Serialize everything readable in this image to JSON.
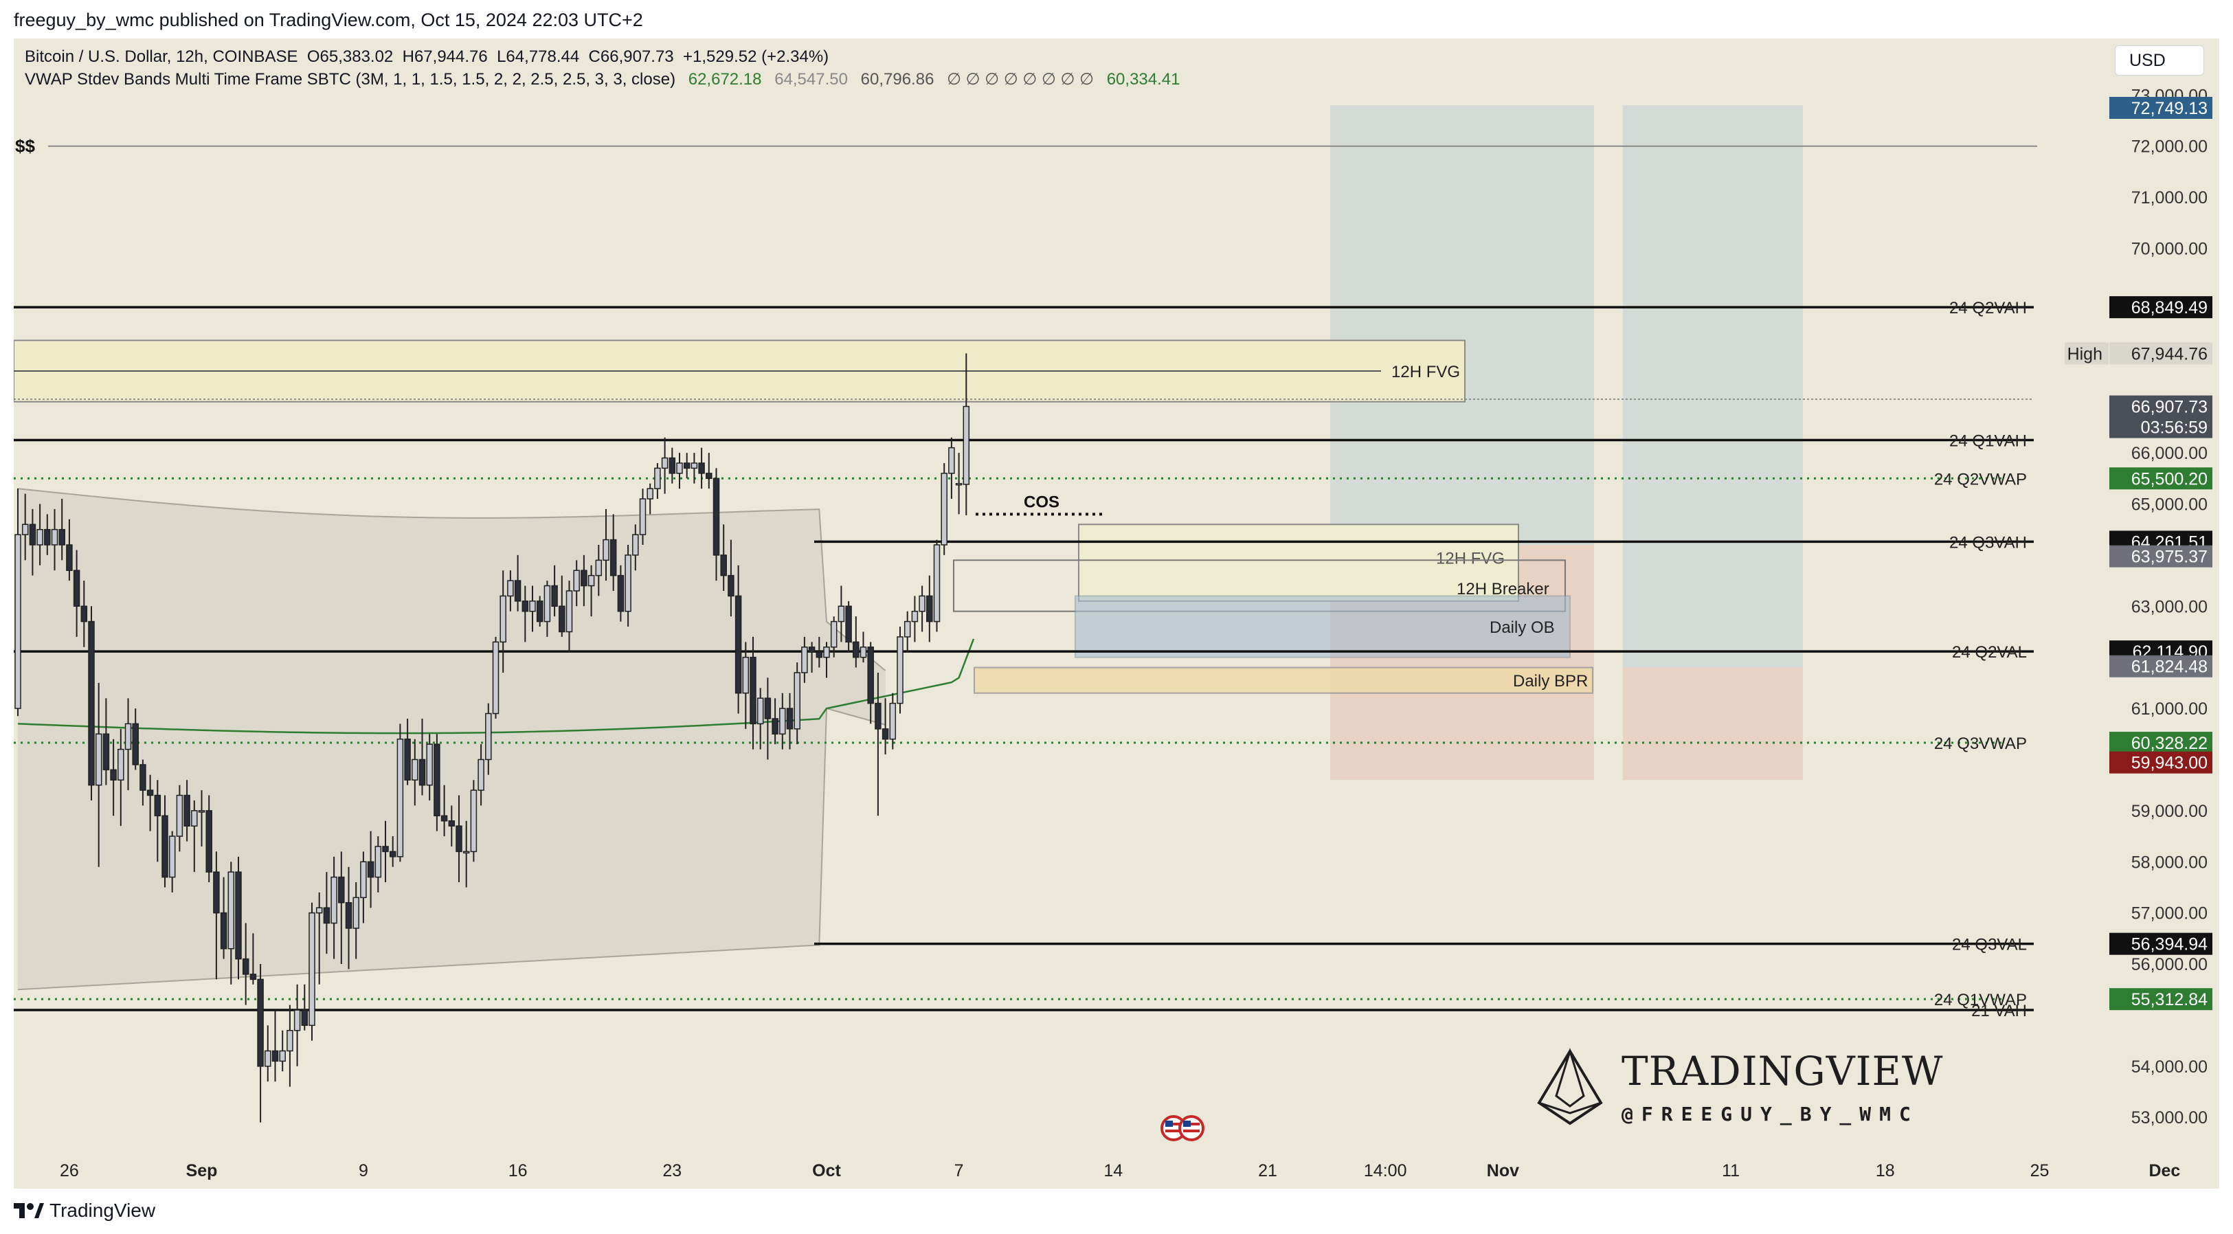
{
  "header": {
    "publish_line": "freeguy_by_wmc published on TradingView.com, Oct 15, 2024 22:03 UTC+2"
  },
  "legend": {
    "symbol": "Bitcoin / U.S. Dollar, 12h, COINBASE",
    "open": "O65,383.02",
    "high": "H67,944.76",
    "low": "L64,778.44",
    "close": "C66,907.73",
    "change": "+1,529.52 (+2.34%)",
    "indicator": "VWAP Stdev Bands Multi Time Frame SBTC (3M, 1, 1, 1.5, 1.5, 2, 2, 2.5, 2.5, 3, 3, close)",
    "ind_v1": "62,672.18",
    "ind_v2": "64,547.50",
    "ind_v3": "60,796.86",
    "ind_na": "∅ ∅ ∅ ∅ ∅ ∅ ∅ ∅",
    "ind_v4": "60,334.41"
  },
  "currency": "USD",
  "footer": {
    "brand": "TradingView"
  },
  "watermark": {
    "title": "TRADINGVIEW",
    "handle": "@FREEGUY_BY_WMC"
  },
  "colors": {
    "background": "#ebe7d9",
    "up_candle": "#c8cbd1",
    "down_candle": "#2a2e39",
    "vwap_green": "#2e7d32",
    "label_green": "#2e7d32",
    "label_red": "#8b1a1a",
    "label_blue": "#2c5f8a"
  },
  "chart_data": {
    "type": "candlestick",
    "interval": "12h",
    "ylim": [
      52600,
      73300
    ],
    "y_ticks": [
      53000,
      54000,
      56000,
      57000,
      58000,
      59000,
      61000,
      63000,
      65000,
      66000,
      70000,
      71000,
      72000,
      73000
    ],
    "y_tick_labels": [
      "53,000.00",
      "54,000.00",
      "56,000.00",
      "57,000.00",
      "58,000.00",
      "59,000.00",
      "61,000.00",
      "63,000.00",
      "65,000.00",
      "66,000.00",
      "70,000.00",
      "71,000.00",
      "72,000.00",
      "73,000.00"
    ],
    "x_ticks": [
      {
        "label": "26",
        "i": 7
      },
      {
        "label": "Sep",
        "i": 25
      },
      {
        "label": "9",
        "i": 47
      },
      {
        "label": "16",
        "i": 68
      },
      {
        "label": "23",
        "i": 89
      },
      {
        "label": "Oct",
        "i": 110
      },
      {
        "label": "7",
        "i": 128
      },
      {
        "label": "14",
        "i": 149
      },
      {
        "label": "21",
        "i": 170
      },
      {
        "label": "14:00",
        "i": 186
      },
      {
        "label": "Nov",
        "i": 202
      },
      {
        "label": "11",
        "i": 233
      },
      {
        "label": "18",
        "i": 254
      },
      {
        "label": "25",
        "i": 275
      },
      {
        "label": "Dec",
        "i": 292
      }
    ],
    "candles": [
      [
        61000,
        65300,
        60850,
        64400
      ],
      [
        64400,
        65200,
        63900,
        64600
      ],
      [
        64600,
        64900,
        63600,
        64200
      ],
      [
        64200,
        65000,
        63800,
        64500
      ],
      [
        64500,
        64800,
        64000,
        64200
      ],
      [
        64200,
        64900,
        63700,
        64500
      ],
      [
        64500,
        65100,
        63900,
        64200
      ],
      [
        64200,
        64700,
        63500,
        63700
      ],
      [
        63700,
        64100,
        62400,
        63000
      ],
      [
        63000,
        63500,
        62200,
        62700
      ],
      [
        62700,
        63000,
        59200,
        59500
      ],
      [
        59500,
        61500,
        57900,
        60500
      ],
      [
        60500,
        61200,
        59500,
        59800
      ],
      [
        59800,
        60400,
        58900,
        59600
      ],
      [
        59600,
        60600,
        58700,
        60200
      ],
      [
        60200,
        61200,
        59400,
        60700
      ],
      [
        60700,
        61000,
        59800,
        59900
      ],
      [
        59900,
        60000,
        59100,
        59400
      ],
      [
        59400,
        59700,
        58600,
        59300
      ],
      [
        59300,
        59600,
        58000,
        58900
      ],
      [
        58900,
        59300,
        57500,
        57700
      ],
      [
        57700,
        58600,
        57400,
        58500
      ],
      [
        58500,
        59500,
        58200,
        59300
      ],
      [
        59300,
        59600,
        58400,
        58700
      ],
      [
        58700,
        59200,
        57800,
        59000
      ],
      [
        59000,
        59400,
        58300,
        59000
      ],
      [
        59000,
        59300,
        57600,
        57800
      ],
      [
        57800,
        58200,
        55700,
        57000
      ],
      [
        57000,
        57700,
        56100,
        56300
      ],
      [
        56300,
        58000,
        55600,
        57800
      ],
      [
        57800,
        58100,
        55700,
        56100
      ],
      [
        56100,
        56800,
        55200,
        55800
      ],
      [
        55800,
        56600,
        55600,
        55700
      ],
      [
        55700,
        56000,
        52900,
        54000
      ],
      [
        54000,
        54800,
        53700,
        54300
      ],
      [
        54300,
        55100,
        53700,
        54100
      ],
      [
        54100,
        54700,
        53900,
        54300
      ],
      [
        54300,
        55200,
        53600,
        54700
      ],
      [
        54700,
        55600,
        54000,
        55100
      ],
      [
        55100,
        55600,
        54700,
        54800
      ],
      [
        54800,
        57200,
        54500,
        57000
      ],
      [
        57000,
        57400,
        55600,
        57100
      ],
      [
        57100,
        57800,
        56200,
        56800
      ],
      [
        56800,
        58100,
        56100,
        57700
      ],
      [
        57700,
        58200,
        56000,
        57200
      ],
      [
        57200,
        57900,
        55900,
        56700
      ],
      [
        56700,
        57600,
        56100,
        57300
      ],
      [
        57300,
        58200,
        56800,
        58000
      ],
      [
        58000,
        58600,
        57100,
        57700
      ],
      [
        57700,
        58500,
        57400,
        58300
      ],
      [
        58300,
        58800,
        57600,
        58200
      ],
      [
        58200,
        58500,
        57900,
        58100
      ],
      [
        58100,
        60700,
        58000,
        60400
      ],
      [
        60400,
        60800,
        59500,
        59600
      ],
      [
        59600,
        60400,
        59100,
        60000
      ],
      [
        60000,
        60800,
        59300,
        59500
      ],
      [
        59500,
        60500,
        59200,
        60300
      ],
      [
        60300,
        60500,
        58600,
        58900
      ],
      [
        58900,
        59500,
        58500,
        58800
      ],
      [
        58800,
        59100,
        58300,
        58700
      ],
      [
        58700,
        59300,
        57600,
        58200
      ],
      [
        58200,
        58800,
        57500,
        58200
      ],
      [
        58200,
        59600,
        58000,
        59400
      ],
      [
        59400,
        60300,
        59100,
        60000
      ],
      [
        60000,
        61100,
        59700,
        60900
      ],
      [
        60900,
        62400,
        60800,
        62300
      ],
      [
        62300,
        63700,
        61700,
        63200
      ],
      [
        63200,
        63700,
        62900,
        63500
      ],
      [
        63500,
        64000,
        62900,
        63100
      ],
      [
        63100,
        63400,
        62300,
        62900
      ],
      [
        62900,
        63400,
        62500,
        63100
      ],
      [
        63100,
        63200,
        62600,
        62700
      ],
      [
        62700,
        63500,
        62400,
        63400
      ],
      [
        63400,
        63800,
        62800,
        63000
      ],
      [
        63000,
        63600,
        62400,
        62500
      ],
      [
        62500,
        63500,
        62100,
        63300
      ],
      [
        63300,
        63900,
        63000,
        63700
      ],
      [
        63700,
        64000,
        63000,
        63400
      ],
      [
        63400,
        63800,
        62800,
        63600
      ],
      [
        63600,
        64200,
        63200,
        63900
      ],
      [
        63900,
        64900,
        63500,
        64300
      ],
      [
        64300,
        64800,
        63300,
        63600
      ],
      [
        63600,
        63800,
        62700,
        62900
      ],
      [
        62900,
        64200,
        62600,
        64000
      ],
      [
        64000,
        64600,
        63700,
        64400
      ],
      [
        64400,
        65300,
        64200,
        65100
      ],
      [
        65100,
        65400,
        64800,
        65300
      ],
      [
        65300,
        65800,
        65100,
        65700
      ],
      [
        65700,
        66300,
        65200,
        65900
      ],
      [
        65900,
        66100,
        65400,
        65600
      ],
      [
        65600,
        66000,
        65300,
        65800
      ],
      [
        65800,
        66000,
        65500,
        65700
      ],
      [
        65700,
        66000,
        65400,
        65800
      ],
      [
        65800,
        66100,
        65300,
        65600
      ],
      [
        65600,
        66000,
        65300,
        65500
      ],
      [
        65500,
        65700,
        63500,
        64000
      ],
      [
        64000,
        64600,
        63300,
        63600
      ],
      [
        63600,
        64300,
        62800,
        63200
      ],
      [
        63200,
        63800,
        60900,
        61300
      ],
      [
        61300,
        62300,
        60600,
        62000
      ],
      [
        62000,
        62400,
        60200,
        60700
      ],
      [
        60700,
        61400,
        60200,
        61200
      ],
      [
        61200,
        61600,
        60000,
        60800
      ],
      [
        60800,
        61200,
        60300,
        60500
      ],
      [
        60500,
        61300,
        60200,
        61000
      ],
      [
        61000,
        61300,
        60200,
        60600
      ],
      [
        60600,
        61900,
        60300,
        61700
      ],
      [
        61700,
        62400,
        61500,
        62200
      ],
      [
        62200,
        62300,
        61700,
        62100
      ],
      [
        62100,
        62400,
        61800,
        62000
      ],
      [
        62000,
        62300,
        61600,
        62200
      ],
      [
        62200,
        62800,
        62000,
        62700
      ],
      [
        62700,
        63400,
        62300,
        63000
      ],
      [
        63000,
        63100,
        62100,
        62300
      ],
      [
        62300,
        62800,
        61800,
        62000
      ],
      [
        62000,
        62500,
        61900,
        62200
      ],
      [
        62200,
        62300,
        60700,
        61100
      ],
      [
        61100,
        61700,
        58900,
        60600
      ],
      [
        60600,
        61200,
        60100,
        60400
      ],
      [
        60400,
        61300,
        60200,
        61100
      ],
      [
        61100,
        62600,
        60900,
        62400
      ],
      [
        62400,
        62900,
        62100,
        62700
      ],
      [
        62700,
        63200,
        62300,
        62900
      ],
      [
        62900,
        63400,
        62500,
        63200
      ],
      [
        63200,
        63600,
        62300,
        62700
      ],
      [
        62700,
        64300,
        62500,
        64200
      ],
      [
        64200,
        65800,
        64000,
        65600
      ],
      [
        65600,
        66300,
        65100,
        66100
      ],
      [
        65400,
        66000,
        64800,
        65400
      ],
      [
        65383.02,
        67944.76,
        64778.44,
        66907.73
      ]
    ],
    "candle_index_offset": 2,
    "horizontal_levels": [
      {
        "label": "24 Q2VAH",
        "value": 68849.49,
        "price_label": "68,849.49",
        "style": "solid"
      },
      {
        "label": "24 Q1VAH",
        "value": 66250,
        "style": "solid"
      },
      {
        "label": "24 Q2VWAP",
        "value": 65500.2,
        "price_label": "65,500.20",
        "style": "dotted-green"
      },
      {
        "label": "24 Q3VAH",
        "value": 64261.51,
        "price_label": "64,261.51",
        "style": "solid"
      },
      {
        "label": "24 Q2VAL",
        "value": 62114.9,
        "price_label": "62,114.90",
        "style": "solid"
      },
      {
        "label": "24 Q3VWAP",
        "value": 60328.22,
        "price_label": "60,328.22",
        "style": "dotted-green"
      },
      {
        "label": "24 Q3VAL",
        "value": 56394.94,
        "price_label": "56,394.94",
        "style": "solid"
      },
      {
        "label": "24 Q1VWAP",
        "value": 55312.84,
        "price_label": "55,312.84",
        "style": "dotted-green"
      },
      {
        "label": "21 VAH",
        "value": 55100,
        "style": "solid"
      }
    ],
    "dollar_level": {
      "label": "$$",
      "value": 72000
    },
    "price_labels": [
      {
        "text": "72,749.13",
        "value": 72749.13,
        "bg": "#2c5f8a"
      },
      {
        "text": "High",
        "value": 67944.76,
        "bg": "#d9d6cc"
      },
      {
        "text": "67,944.76",
        "value": 67944.76,
        "bg": "#d9d6cc"
      },
      {
        "text": "66,907.73",
        "value": 66907.73,
        "bg": "#4a4e59"
      },
      {
        "text": "03:56:59",
        "value": 66500,
        "bg": "#4a4e59"
      },
      {
        "text": "63,975.37",
        "value": 63975.37,
        "bg": "#6e717a"
      },
      {
        "text": "61,824.48",
        "value": 61824.48,
        "bg": "#6e717a"
      },
      {
        "text": "59,943.00",
        "value": 59943.0,
        "bg": "#8b1a1a"
      }
    ],
    "zones": [
      {
        "label": "12H FVG",
        "top": 68200,
        "bottom": 67000
      },
      {
        "label": "12H FVG",
        "top": 64600,
        "bottom": 63100
      },
      {
        "label": "12H Breaker",
        "top": 63900,
        "bottom": 62900
      },
      {
        "label": "Daily OB",
        "top": 63200,
        "bottom": 62000
      },
      {
        "label": "Daily BPR",
        "top": 61800,
        "bottom": 61300
      },
      {
        "label": "COS",
        "value": 64800
      }
    ],
    "vwap": {
      "upper": [],
      "lower": [],
      "mid": []
    }
  }
}
